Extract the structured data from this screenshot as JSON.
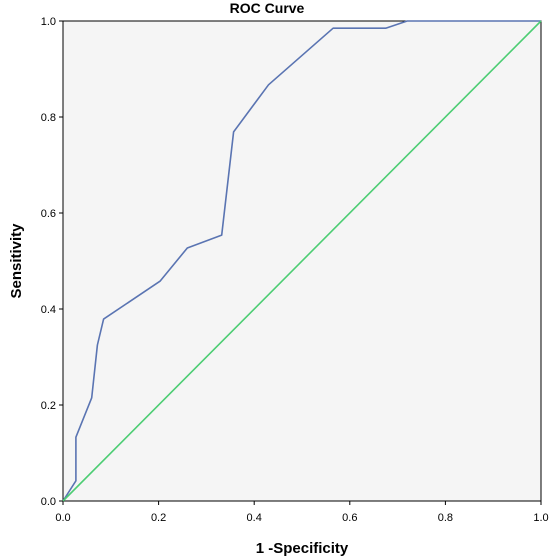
{
  "chart_data": {
    "type": "line",
    "title": "ROC Curve",
    "xlabel": "1 -Specificity",
    "ylabel": "Sensitivity",
    "xlim": [
      0,
      1
    ],
    "ylim": [
      0,
      1
    ],
    "x_ticks": [
      "0.0",
      "0.2",
      "0.4",
      "0.6",
      "0.8",
      "1.0"
    ],
    "y_ticks": [
      "0.0",
      "0.2",
      "0.4",
      "0.6",
      "0.8",
      "1.0"
    ],
    "grid": false,
    "background": "#f5f5f5",
    "series": [
      {
        "color": "#5a74b2",
        "points": [
          [
            0,
            0
          ],
          [
            0.027,
            0.042
          ],
          [
            0.027,
            0.133
          ],
          [
            0.06,
            0.215
          ],
          [
            0.072,
            0.325
          ],
          [
            0.085,
            0.379
          ],
          [
            0.203,
            0.458
          ],
          [
            0.26,
            0.527
          ],
          [
            0.332,
            0.554
          ],
          [
            0.357,
            0.769
          ],
          [
            0.43,
            0.867
          ],
          [
            0.565,
            0.985
          ],
          [
            0.675,
            0.985
          ],
          [
            0.72,
            1.0
          ],
          [
            1.0,
            1.0
          ]
        ]
      },
      {
        "color": "#4ccd73",
        "points": [
          [
            0,
            0
          ],
          [
            1,
            1
          ]
        ]
      }
    ]
  }
}
